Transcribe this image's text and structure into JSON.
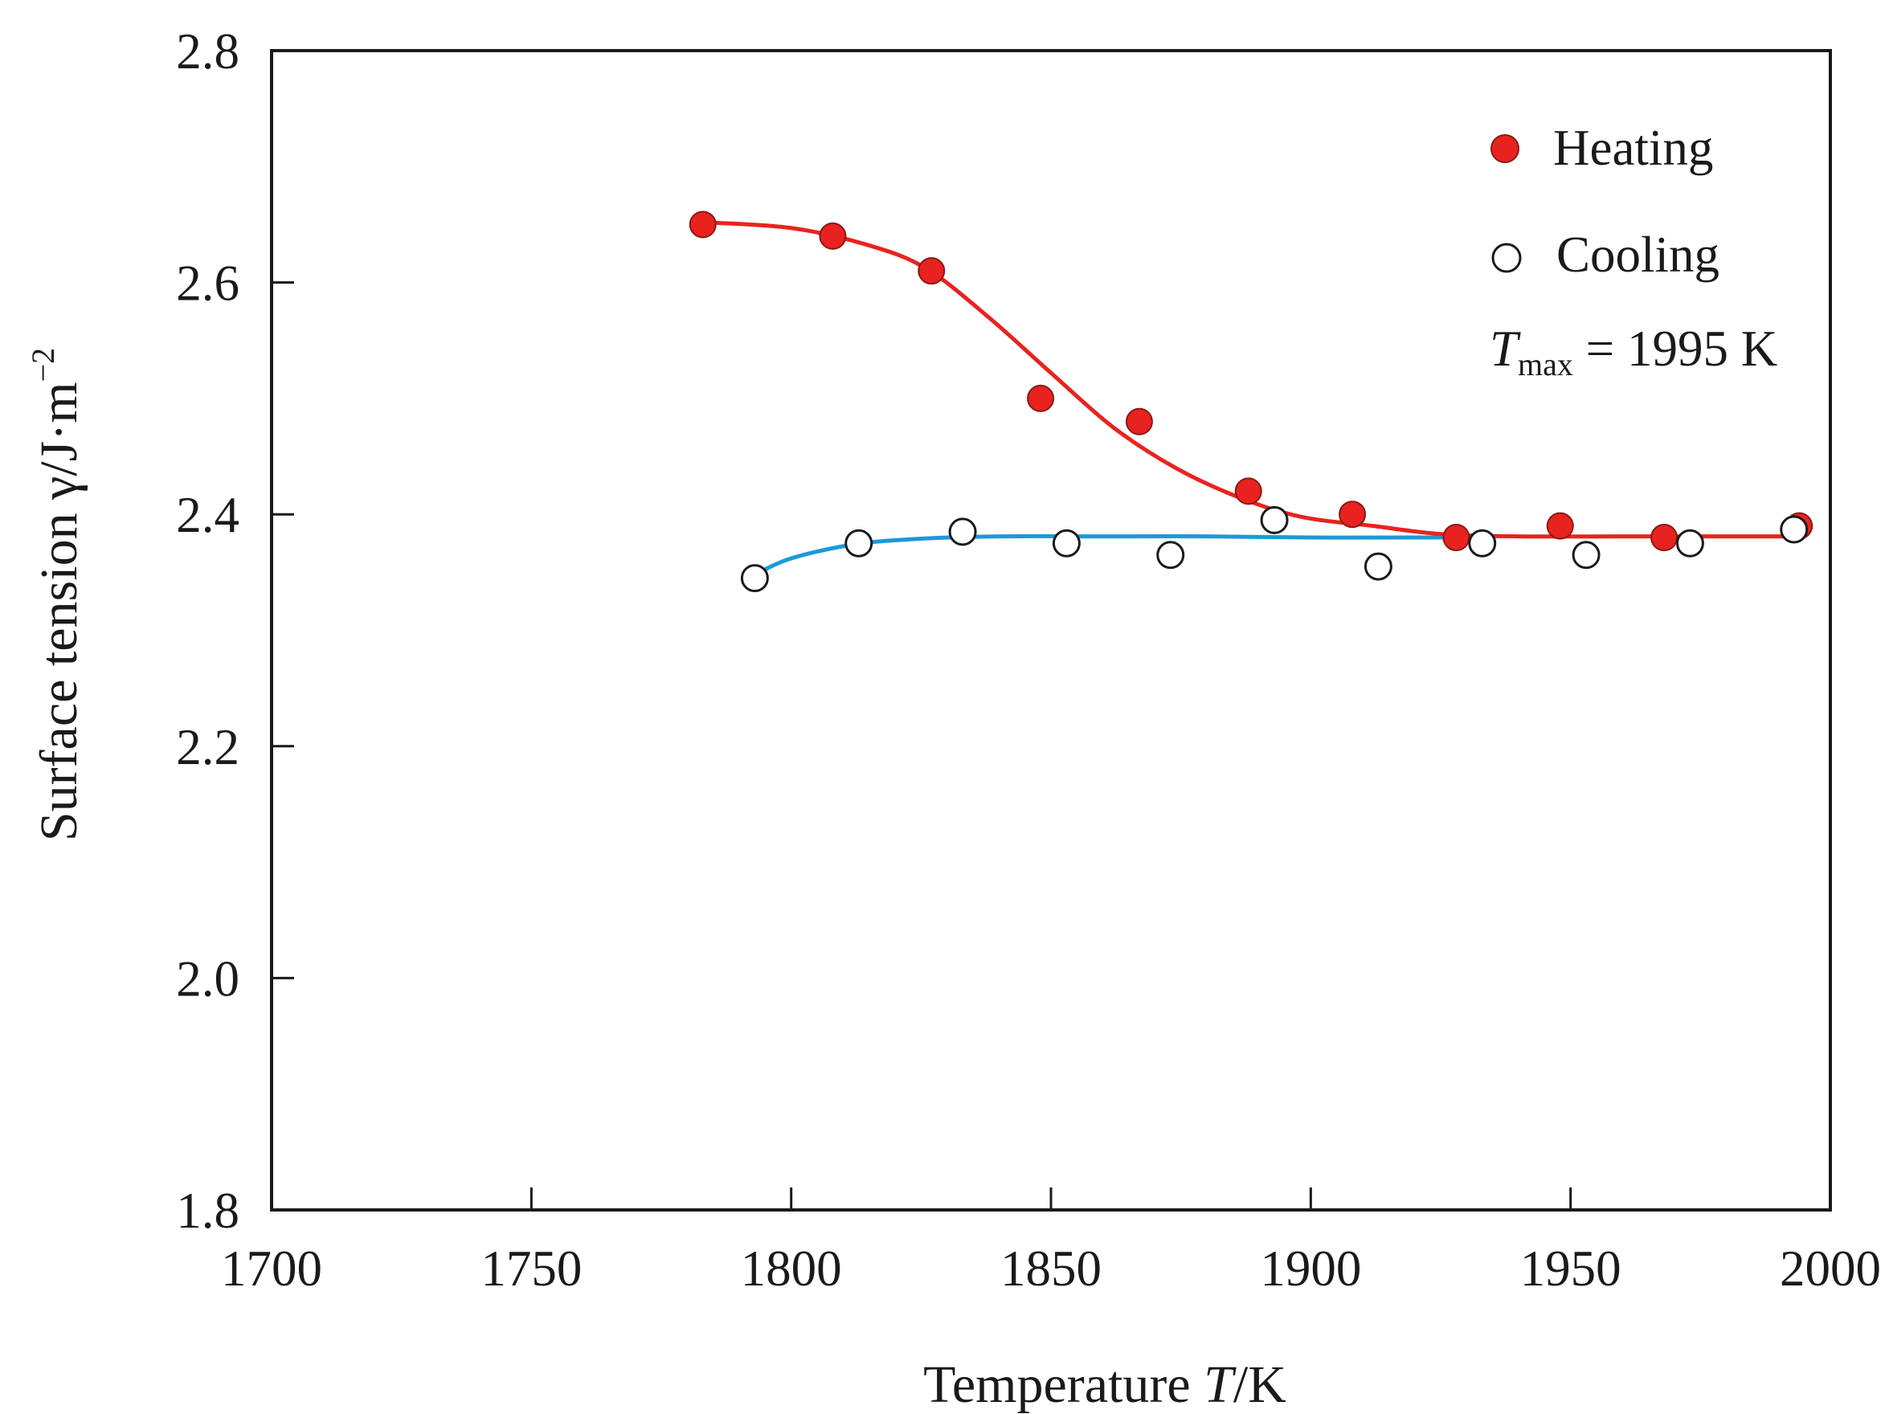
{
  "chart_data": {
    "type": "scatter",
    "title": "",
    "xlabel": {
      "prefix": "Temperature ",
      "var": "T",
      "unit": "/K"
    },
    "ylabel": {
      "prefix": "Surface tension γ/J·m",
      "exponent": "−2"
    },
    "xlim": [
      1700,
      2000
    ],
    "ylim": [
      1.8,
      2.8
    ],
    "x_ticks": [
      "1700",
      "1750",
      "1800",
      "1850",
      "1900",
      "1950",
      "2000"
    ],
    "y_ticks": [
      "1.8",
      "2.0",
      "2.2",
      "2.4",
      "2.6",
      "2.8"
    ],
    "grid": false,
    "legend_position": "top-right",
    "annotation": {
      "var": "T",
      "sub": "max",
      "text": " = 1995 K"
    },
    "series": [
      {
        "name": "Heating",
        "marker": "filled-circle",
        "color": "#e8231f",
        "points": [
          [
            1783,
            2.65
          ],
          [
            1808,
            2.64
          ],
          [
            1827,
            2.61
          ],
          [
            1848,
            2.5
          ],
          [
            1867,
            2.48
          ],
          [
            1888,
            2.42
          ],
          [
            1908,
            2.4
          ],
          [
            1928,
            2.38
          ],
          [
            1948,
            2.39
          ],
          [
            1968,
            2.38
          ],
          [
            1994,
            2.39
          ]
        ],
        "fit": [
          [
            1783,
            2.652
          ],
          [
            1800,
            2.647
          ],
          [
            1815,
            2.632
          ],
          [
            1826,
            2.612
          ],
          [
            1838,
            2.57
          ],
          [
            1850,
            2.522
          ],
          [
            1862,
            2.475
          ],
          [
            1874,
            2.44
          ],
          [
            1886,
            2.415
          ],
          [
            1898,
            2.398
          ],
          [
            1912,
            2.39
          ],
          [
            1925,
            2.383
          ],
          [
            1940,
            2.381
          ],
          [
            1960,
            2.381
          ],
          [
            1994,
            2.381
          ]
        ]
      },
      {
        "name": "Cooling",
        "marker": "open-circle",
        "color": "#1a9ad9",
        "points": [
          [
            1793,
            2.345
          ],
          [
            1813,
            2.375
          ],
          [
            1833,
            2.385
          ],
          [
            1853,
            2.375
          ],
          [
            1873,
            2.365
          ],
          [
            1893,
            2.395
          ],
          [
            1913,
            2.355
          ],
          [
            1933,
            2.375
          ],
          [
            1953,
            2.365
          ],
          [
            1973,
            2.375
          ],
          [
            1993,
            2.387
          ]
        ],
        "fit": [
          [
            1793,
            2.348
          ],
          [
            1800,
            2.362
          ],
          [
            1812,
            2.374
          ],
          [
            1825,
            2.379
          ],
          [
            1840,
            2.381
          ],
          [
            1860,
            2.381
          ],
          [
            1880,
            2.381
          ],
          [
            1900,
            2.38
          ],
          [
            1920,
            2.38
          ],
          [
            1930,
            2.38
          ]
        ]
      }
    ]
  }
}
